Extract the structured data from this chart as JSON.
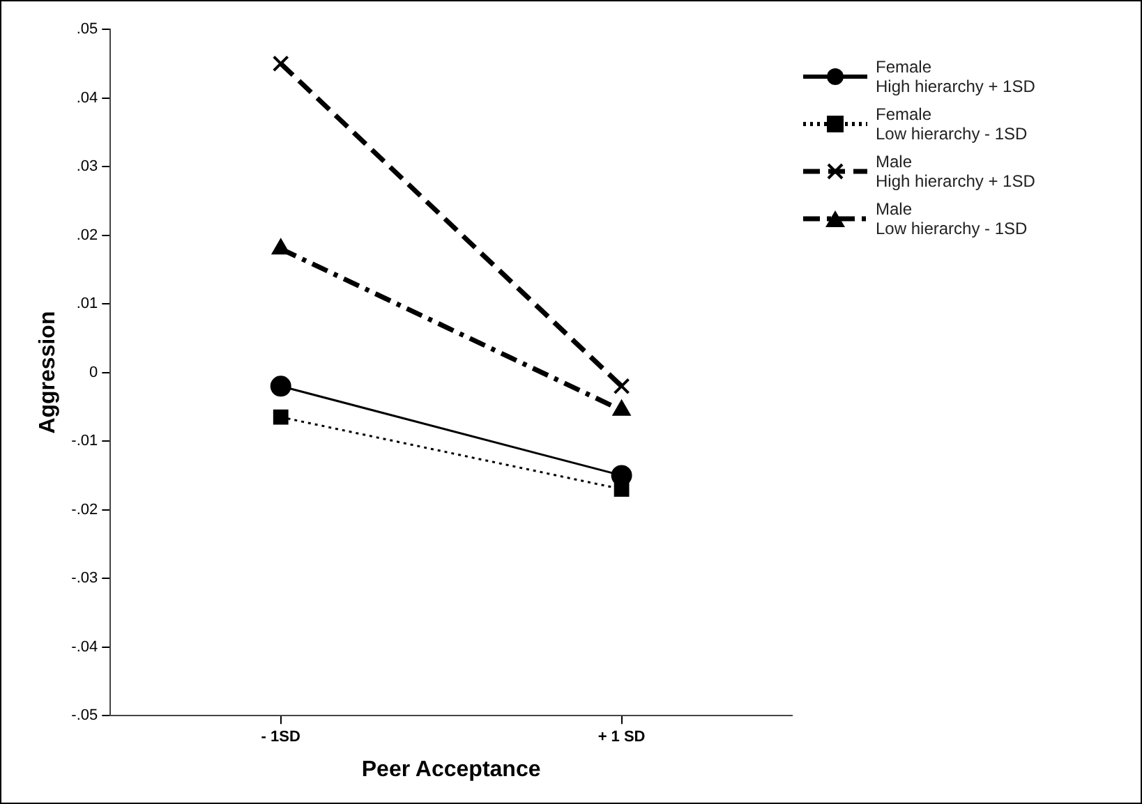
{
  "chart_data": {
    "type": "line",
    "xlabel": "Peer Acceptance",
    "ylabel": "Aggression",
    "categories": [
      "- 1SD",
      "+ 1 SD"
    ],
    "series": [
      {
        "name": "Female\nHigh hierarchy  + 1SD",
        "color": "#000000",
        "values": [
          -0.002,
          -0.015
        ],
        "marker": "circle",
        "line_style": "solid"
      },
      {
        "name": "Female\nLow hierarchy   - 1SD",
        "color": "#000000",
        "values": [
          -0.0065,
          -0.017
        ],
        "marker": "square",
        "line_style": "dotted"
      },
      {
        "name": "Male\nHigh hierarchy  + 1SD",
        "color": "#000000",
        "values": [
          0.045,
          -0.002
        ],
        "marker": "cross",
        "line_style": "dashed"
      },
      {
        "name": "Male\nLow hierarchy   - 1SD",
        "color": "#000000",
        "values": [
          0.018,
          -0.0055
        ],
        "marker": "triangle",
        "line_style": "dashdot"
      }
    ],
    "ylim": [
      -0.05,
      0.05
    ],
    "yticks": [
      {
        "value": -0.05,
        "label": "-.05"
      },
      {
        "value": -0.04,
        "label": "-.04"
      },
      {
        "value": -0.03,
        "label": "-.03"
      },
      {
        "value": -0.02,
        "label": "-.02"
      },
      {
        "value": -0.01,
        "label": "-.01"
      },
      0,
      {
        "value": 0.01,
        "label": ".01"
      },
      {
        "value": 0.02,
        "label": ".02"
      },
      {
        "value": 0.03,
        "label": ".03"
      },
      {
        "value": 0.04,
        "label": ".04"
      },
      {
        "value": 0.05,
        "label": ".05"
      }
    ],
    "grid": false,
    "legend": "top right"
  }
}
